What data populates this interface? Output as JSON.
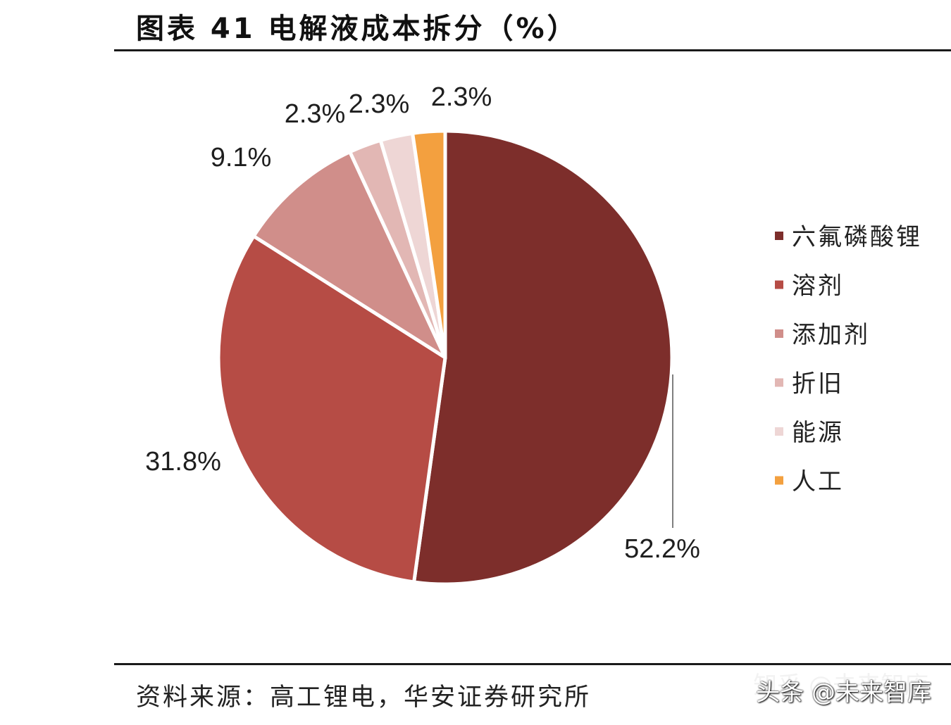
{
  "title": "图表 41  电解液成本拆分（%）",
  "source": "资料来源：高工锂电，华安证券研究所",
  "watermark": {
    "line1": "知乎 @未来智库",
    "line2": "头条 @未来智库"
  },
  "chart_data": {
    "type": "pie",
    "title": "图表 41  电解液成本拆分（%）",
    "categories": [
      "六氟磷酸锂",
      "溶剂",
      "添加剂",
      "折旧",
      "能源",
      "人工"
    ],
    "values": [
      52.2,
      31.8,
      9.1,
      2.3,
      2.3,
      2.3
    ],
    "labels": [
      "52.2%",
      "31.8%",
      "9.1%",
      "2.3%",
      "2.3%",
      "2.3%"
    ],
    "colors": [
      "#7d2e2b",
      "#b64c45",
      "#d08e8a",
      "#e2b7b4",
      "#eed6d5",
      "#f3a03f"
    ],
    "legend_position": "right",
    "start": "12 o'clock, clockwise"
  }
}
